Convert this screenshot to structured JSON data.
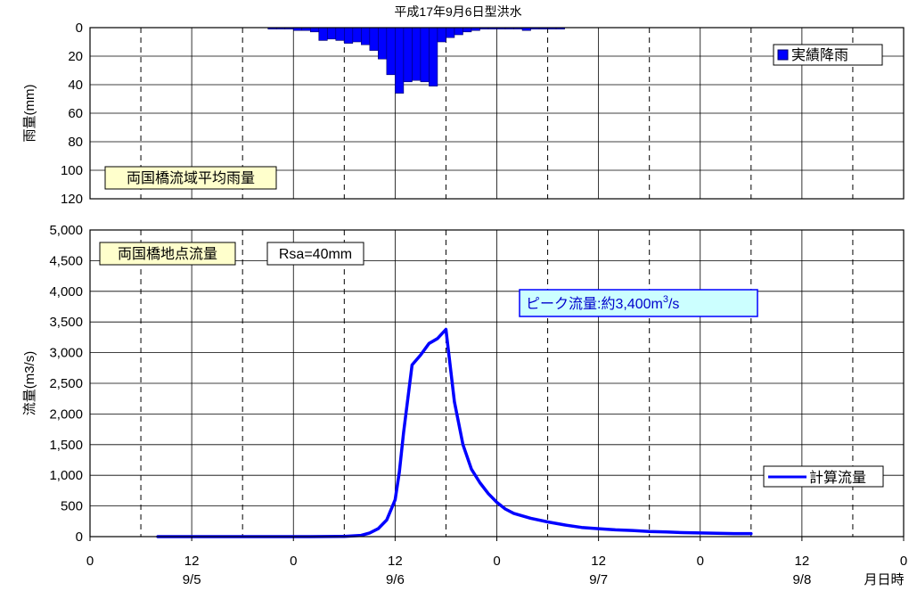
{
  "title": "平成17年9月6日型洪水",
  "colors": {
    "series": "#0000ff",
    "bar_fill": "#0000ff",
    "bar_stroke": "#000066",
    "label_box": "#ffffcc",
    "peak_box": "#ccffff",
    "peak_border": "#0000ff",
    "peak_text": "#0000cc"
  },
  "x_axis": {
    "hour_labels": [
      "0",
      "12",
      "0",
      "12",
      "0",
      "12",
      "0",
      "12",
      "0"
    ],
    "date_labels": [
      "9/5",
      "9/6",
      "9/7",
      "9/8"
    ],
    "unit_label": "月日時",
    "range_hours": [
      0,
      96
    ]
  },
  "rain_panel": {
    "ylabel": "雨量(mm)",
    "yticks": [
      "0",
      "20",
      "40",
      "60",
      "80",
      "100",
      "120"
    ],
    "ylim": [
      0,
      120
    ],
    "inverted": true,
    "legend": "実績降雨",
    "box_label": "両国橋流域平均雨量"
  },
  "flow_panel": {
    "ylabel": "流量(m3/s)",
    "yticks": [
      "0",
      "500",
      "1,000",
      "1,500",
      "2,000",
      "2,500",
      "3,000",
      "3,500",
      "4,000",
      "4,500",
      "5,000"
    ],
    "ylim": [
      0,
      5000
    ],
    "legend": "計算流量",
    "box_label": "両国橋地点流量",
    "rsa_label": "Rsa=40mm",
    "peak_label_main": "ピーク流量:約3,400m",
    "peak_label_sup": "3",
    "peak_label_tail": "/s"
  },
  "chart_data": [
    {
      "type": "bar",
      "title": "平成17年9月6日型洪水",
      "ylabel": "雨量(mm)",
      "ylim": [
        0,
        120
      ],
      "x_unit": "hour from 9/5 0:00",
      "grid": true,
      "legend_position": "top-right",
      "series": [
        {
          "name": "実績降雨",
          "x": [
            21,
            22,
            23,
            24,
            25,
            26,
            27,
            28,
            29,
            30,
            31,
            32,
            33,
            34,
            35,
            36,
            37,
            38,
            39,
            40,
            41,
            42,
            43,
            44,
            45,
            46,
            47,
            48,
            49,
            50,
            51,
            52,
            53,
            54,
            55
          ],
          "values": [
            1,
            1,
            1,
            2,
            2,
            3,
            9,
            8,
            9,
            11,
            10,
            12,
            16,
            22,
            33,
            46,
            38,
            37,
            38,
            41,
            10,
            7,
            5,
            3,
            2,
            1,
            1,
            1,
            1,
            1,
            2,
            1,
            1,
            1,
            1
          ]
        }
      ]
    },
    {
      "type": "line",
      "ylabel": "流量(m3/s)",
      "ylim": [
        0,
        5000
      ],
      "x_unit": "hour from 9/5 0:00",
      "grid": true,
      "legend_position": "bottom-right",
      "series": [
        {
          "name": "計算流量",
          "x": [
            8,
            14,
            20,
            26,
            30,
            32,
            33,
            34,
            35,
            36,
            36.5,
            37,
            38,
            39,
            40,
            41,
            42,
            43,
            44,
            45,
            46,
            47,
            48,
            49,
            50,
            52,
            54,
            56,
            58,
            60,
            62,
            64,
            66,
            68,
            70,
            72,
            74,
            76,
            78
          ],
          "values": [
            0,
            0,
            0,
            0,
            5,
            20,
            60,
            130,
            270,
            600,
            1050,
            1700,
            2800,
            2960,
            3150,
            3230,
            3380,
            2200,
            1500,
            1100,
            880,
            700,
            560,
            450,
            380,
            300,
            240,
            190,
            150,
            130,
            110,
            100,
            85,
            75,
            65,
            60,
            55,
            50,
            50
          ]
        }
      ]
    }
  ]
}
